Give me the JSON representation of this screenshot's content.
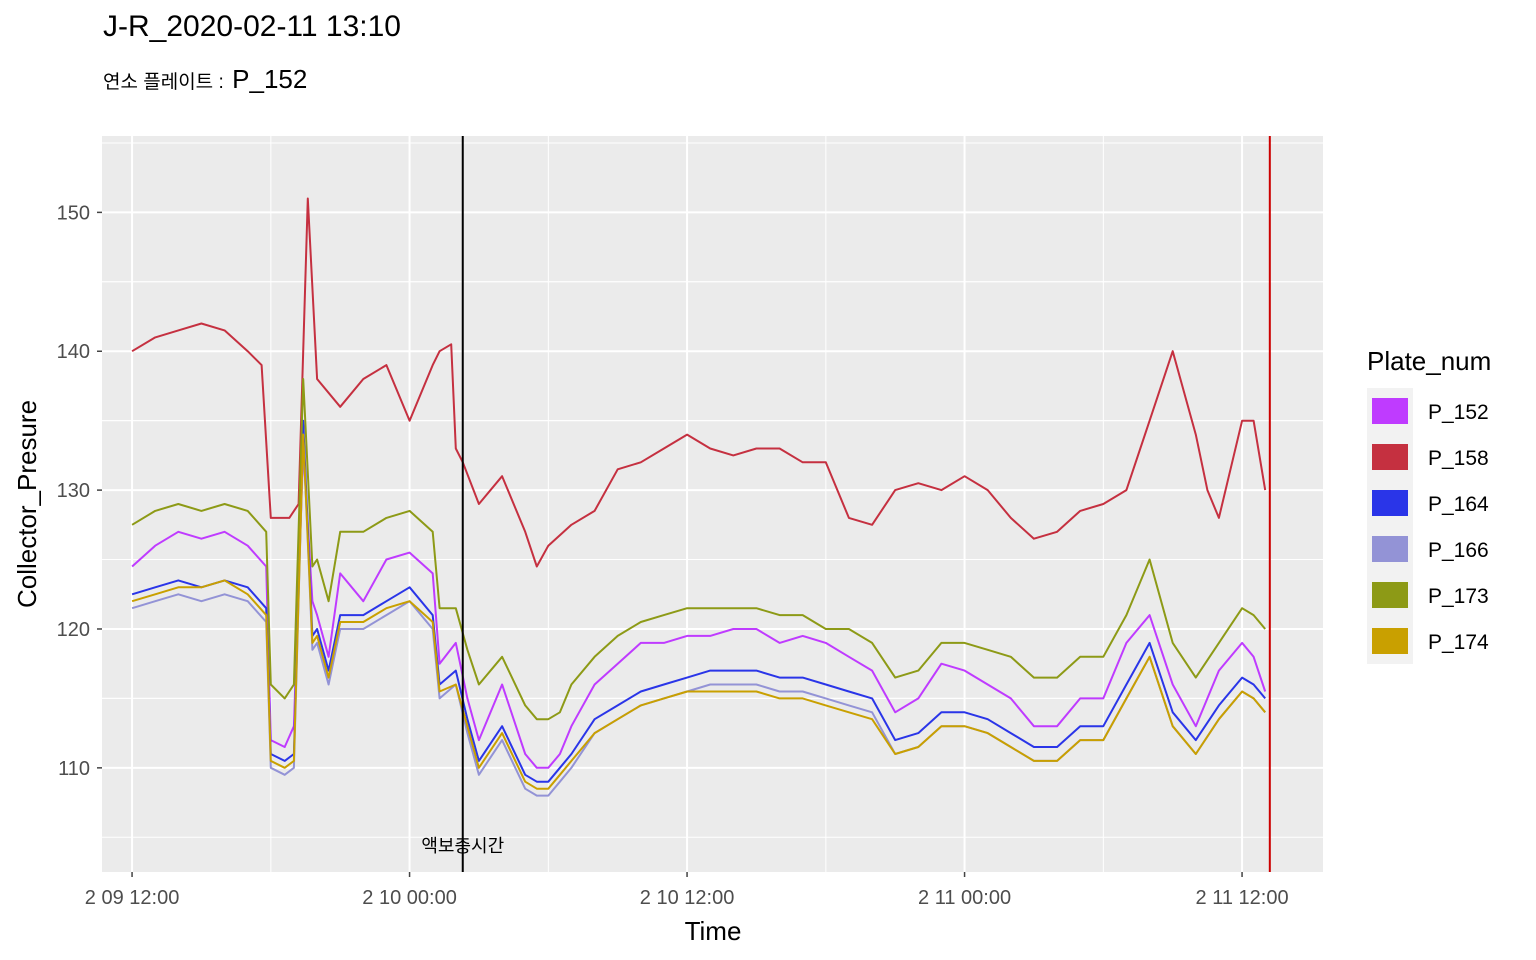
{
  "title": "J-R_2020-02-11 13:10",
  "subtitle": {
    "prefix": "연소 플레이트 :",
    "value": "P_152"
  },
  "chart_data": {
    "type": "line",
    "xlabel": "Time",
    "ylabel": "Collector_Presure",
    "x_unit": "hours since 2 09 12:00",
    "xlim": [
      -1.3,
      51.5
    ],
    "ylim": [
      102.5,
      155.5
    ],
    "x_ticks": [
      {
        "at": 0,
        "label": "2 09 12:00"
      },
      {
        "at": 12,
        "label": "2 10 00:00"
      },
      {
        "at": 24,
        "label": "2 10 12:00"
      },
      {
        "at": 36,
        "label": "2 11 00:00"
      },
      {
        "at": 48,
        "label": "2 11 12:00"
      }
    ],
    "y_ticks": [
      110,
      120,
      130,
      140,
      150
    ],
    "grid": true,
    "legend": {
      "title": "Plate_num",
      "position": "right"
    },
    "vlines": [
      {
        "x": 14.3,
        "color": "#000000",
        "label": "액보충시간"
      },
      {
        "x": 49.2,
        "color": "#cc0000",
        "label": ""
      }
    ],
    "series": [
      {
        "name": "P_152",
        "color": "#bf3bff",
        "x": [
          0,
          1,
          2,
          3,
          4,
          5,
          5.8,
          6,
          6.6,
          7,
          7.4,
          7.8,
          8,
          8.5,
          9,
          10,
          11,
          12,
          13,
          13.3,
          14,
          14.5,
          15,
          16,
          17,
          17.5,
          18,
          18.5,
          19,
          20,
          21,
          22,
          23,
          24,
          25,
          26,
          27,
          28,
          29,
          30,
          31,
          32,
          33,
          34,
          35,
          36,
          37,
          38,
          39,
          40,
          41,
          42,
          43,
          44,
          45,
          46,
          47,
          48,
          48.5,
          49
        ],
        "y": [
          124.5,
          126,
          127,
          126.5,
          127,
          126,
          124.5,
          112,
          111.5,
          113,
          133,
          122,
          121,
          118,
          124,
          122,
          125,
          125.5,
          124,
          117.5,
          119,
          115,
          112,
          116,
          111,
          110,
          110,
          111,
          113,
          116,
          117.5,
          119,
          119,
          119.5,
          119.5,
          120,
          120,
          119,
          119.5,
          119,
          118,
          117,
          114,
          115,
          117.5,
          117,
          116,
          115,
          113,
          113,
          115,
          115,
          119,
          121,
          116,
          113,
          117,
          119,
          118,
          115.5
        ]
      },
      {
        "name": "P_158",
        "color": "#c53040",
        "x": [
          0,
          1,
          2,
          3,
          4,
          5,
          5.6,
          6,
          6.8,
          7.2,
          7.6,
          8,
          9,
          10,
          11,
          12,
          13,
          13.3,
          13.8,
          14,
          14.3,
          15,
          16,
          17,
          17.5,
          18,
          19,
          20,
          21,
          22,
          23,
          24,
          25,
          26,
          27,
          28,
          29,
          30,
          31,
          32,
          33,
          34,
          35,
          36,
          37,
          38,
          39,
          40,
          41,
          42,
          43,
          44,
          45,
          46,
          46.5,
          47,
          48,
          48.5,
          49
        ],
        "y": [
          140,
          141,
          141.5,
          142,
          141.5,
          140,
          139,
          128,
          128,
          129,
          151,
          138,
          136,
          138,
          139,
          135,
          139,
          140,
          140.5,
          133,
          132,
          129,
          131,
          127,
          124.5,
          126,
          127.5,
          128.5,
          131.5,
          132,
          133,
          134,
          133,
          132.5,
          133,
          133,
          132,
          132,
          128,
          127.5,
          130,
          130.5,
          130,
          131,
          130,
          128,
          126.5,
          127,
          128.5,
          129,
          130,
          135,
          140,
          134,
          130,
          128,
          135,
          135,
          130
        ]
      },
      {
        "name": "P_164",
        "color": "#2a35e8",
        "x": [
          0,
          1,
          2,
          3,
          4,
          5,
          5.8,
          6,
          6.6,
          7,
          7.4,
          7.8,
          8,
          8.5,
          9,
          10,
          11,
          12,
          13,
          13.3,
          14,
          14.5,
          15,
          16,
          17,
          17.5,
          18,
          18.5,
          19,
          20,
          21,
          22,
          23,
          24,
          25,
          26,
          27,
          28,
          29,
          30,
          31,
          32,
          33,
          34,
          35,
          36,
          37,
          38,
          39,
          40,
          41,
          42,
          43,
          44,
          45,
          46,
          47,
          48,
          48.5,
          49
        ],
        "y": [
          122.5,
          123,
          123.5,
          123,
          123.5,
          123,
          121.5,
          111,
          110.5,
          111,
          135,
          119.5,
          120,
          117,
          121,
          121,
          122,
          123,
          121,
          116,
          117,
          113.5,
          110.5,
          113,
          109.5,
          109,
          109,
          110,
          111,
          113.5,
          114.5,
          115.5,
          116,
          116.5,
          117,
          117,
          117,
          116.5,
          116.5,
          116,
          115.5,
          115,
          112,
          112.5,
          114,
          114,
          113.5,
          112.5,
          111.5,
          111.5,
          113,
          113,
          116,
          119,
          114,
          112,
          114.5,
          116.5,
          116,
          115
        ]
      },
      {
        "name": "P_166",
        "color": "#9393d6",
        "x": [
          0,
          1,
          2,
          3,
          4,
          5,
          5.8,
          6,
          6.6,
          7,
          7.4,
          7.8,
          8,
          8.5,
          9,
          10,
          11,
          12,
          13,
          13.3,
          14,
          14.5,
          15,
          16,
          17,
          17.5,
          18,
          18.5,
          19,
          20,
          21,
          22,
          23,
          24,
          25,
          26,
          27,
          28,
          29,
          30,
          31,
          32,
          33,
          34,
          35,
          36,
          37,
          38,
          39,
          40,
          41,
          42,
          43,
          44,
          45,
          46,
          47,
          48,
          48.5,
          49
        ],
        "y": [
          121.5,
          122,
          122.5,
          122,
          122.5,
          122,
          120.5,
          110,
          109.5,
          110,
          134,
          118.5,
          119,
          116,
          120,
          120,
          121,
          122,
          120,
          115,
          116,
          112.5,
          109.5,
          112,
          108.5,
          108,
          108,
          109,
          110,
          112.5,
          113.5,
          114.5,
          115,
          115.5,
          116,
          116,
          116,
          115.5,
          115.5,
          115,
          114.5,
          114,
          111,
          111.5,
          113,
          113,
          112.5,
          111.5,
          110.5,
          110.5,
          112,
          112,
          115,
          118,
          113,
          111,
          113.5,
          115.5,
          115,
          114
        ]
      },
      {
        "name": "P_173",
        "color": "#8d9a16",
        "x": [
          0,
          1,
          2,
          3,
          4,
          5,
          5.8,
          6,
          6.6,
          7,
          7.4,
          7.8,
          8,
          8.5,
          9,
          10,
          11,
          12,
          13,
          13.3,
          14,
          14.5,
          15,
          16,
          17,
          17.5,
          18,
          18.5,
          19,
          20,
          21,
          22,
          23,
          24,
          25,
          26,
          27,
          28,
          29,
          30,
          31,
          32,
          33,
          34,
          35,
          36,
          37,
          38,
          39,
          40,
          41,
          42,
          43,
          44,
          45,
          46,
          47,
          48,
          48.5,
          49
        ],
        "y": [
          127.5,
          128.5,
          129,
          128.5,
          129,
          128.5,
          127,
          116,
          115,
          116,
          138,
          124.5,
          125,
          122,
          127,
          127,
          128,
          128.5,
          127,
          121.5,
          121.5,
          118.5,
          116,
          118,
          114.5,
          113.5,
          113.5,
          114,
          116,
          118,
          119.5,
          120.5,
          121,
          121.5,
          121.5,
          121.5,
          121.5,
          121,
          121,
          120,
          120,
          119,
          116.5,
          117,
          119,
          119,
          118.5,
          118,
          116.5,
          116.5,
          118,
          118,
          121,
          125,
          119,
          116.5,
          119,
          121.5,
          121,
          120
        ]
      },
      {
        "name": "P_174",
        "color": "#c9a000",
        "x": [
          0,
          1,
          2,
          3,
          4,
          5,
          5.8,
          6,
          6.6,
          7,
          7.4,
          7.8,
          8,
          8.5,
          9,
          10,
          11,
          12,
          13,
          13.3,
          14,
          14.5,
          15,
          16,
          17,
          17.5,
          18,
          18.5,
          19,
          20,
          21,
          22,
          23,
          24,
          25,
          26,
          27,
          28,
          29,
          30,
          31,
          32,
          33,
          34,
          35,
          36,
          37,
          38,
          39,
          40,
          41,
          42,
          43,
          44,
          45,
          46,
          47,
          48,
          48.5,
          49
        ],
        "y": [
          122,
          122.5,
          123,
          123,
          123.5,
          122.5,
          121,
          110.5,
          110,
          110.5,
          134,
          119,
          119.5,
          116.5,
          120.5,
          120.5,
          121.5,
          122,
          120.5,
          115.5,
          116,
          113,
          110,
          112.5,
          109,
          108.5,
          108.5,
          109.5,
          110.5,
          112.5,
          113.5,
          114.5,
          115,
          115.5,
          115.5,
          115.5,
          115.5,
          115,
          115,
          114.5,
          114,
          113.5,
          111,
          111.5,
          113,
          113,
          112.5,
          111.5,
          110.5,
          110.5,
          112,
          112,
          115,
          118,
          113,
          111,
          113.5,
          115.5,
          115,
          114
        ]
      }
    ]
  }
}
